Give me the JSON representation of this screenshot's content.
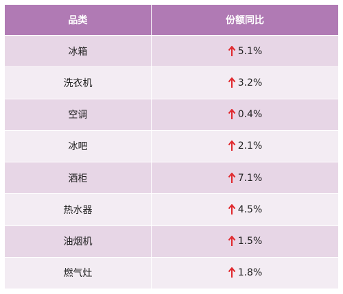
{
  "table": {
    "headers": [
      "品类",
      "份额同比"
    ],
    "rows": [
      {
        "category": "冰箱",
        "change": "5.1%"
      },
      {
        "category": "洗衣机",
        "change": "3.2%"
      },
      {
        "category": "空调",
        "change": "0.4%"
      },
      {
        "category": "冰吧",
        "change": "2.1%"
      },
      {
        "category": "酒柜",
        "change": "7.1%"
      },
      {
        "category": "热水器",
        "change": "4.5%"
      },
      {
        "category": "油烟机",
        "change": "1.5%"
      },
      {
        "category": "燃气灶",
        "change": "1.8%"
      }
    ],
    "trend_icon": "up-arrow-icon",
    "colors": {
      "header_bg": "#b07ab4",
      "row_odd": "#e7d6e6",
      "row_even": "#f3ecf3",
      "arrow": "#e0262b"
    }
  },
  "chart_data": {
    "type": "table",
    "columns": [
      "品类",
      "份额同比"
    ],
    "rows": [
      [
        "冰箱",
        "5.1%"
      ],
      [
        "洗衣机",
        "3.2%"
      ],
      [
        "空调",
        "0.4%"
      ],
      [
        "冰吧",
        "2.1%"
      ],
      [
        "酒柜",
        "7.1%"
      ],
      [
        "热水器",
        "4.5%"
      ],
      [
        "油烟机",
        "1.5%"
      ],
      [
        "燃气灶",
        "1.8%"
      ]
    ],
    "values": [
      5.1,
      3.2,
      0.4,
      2.1,
      7.1,
      4.5,
      1.5,
      1.8
    ],
    "trend": "up"
  }
}
